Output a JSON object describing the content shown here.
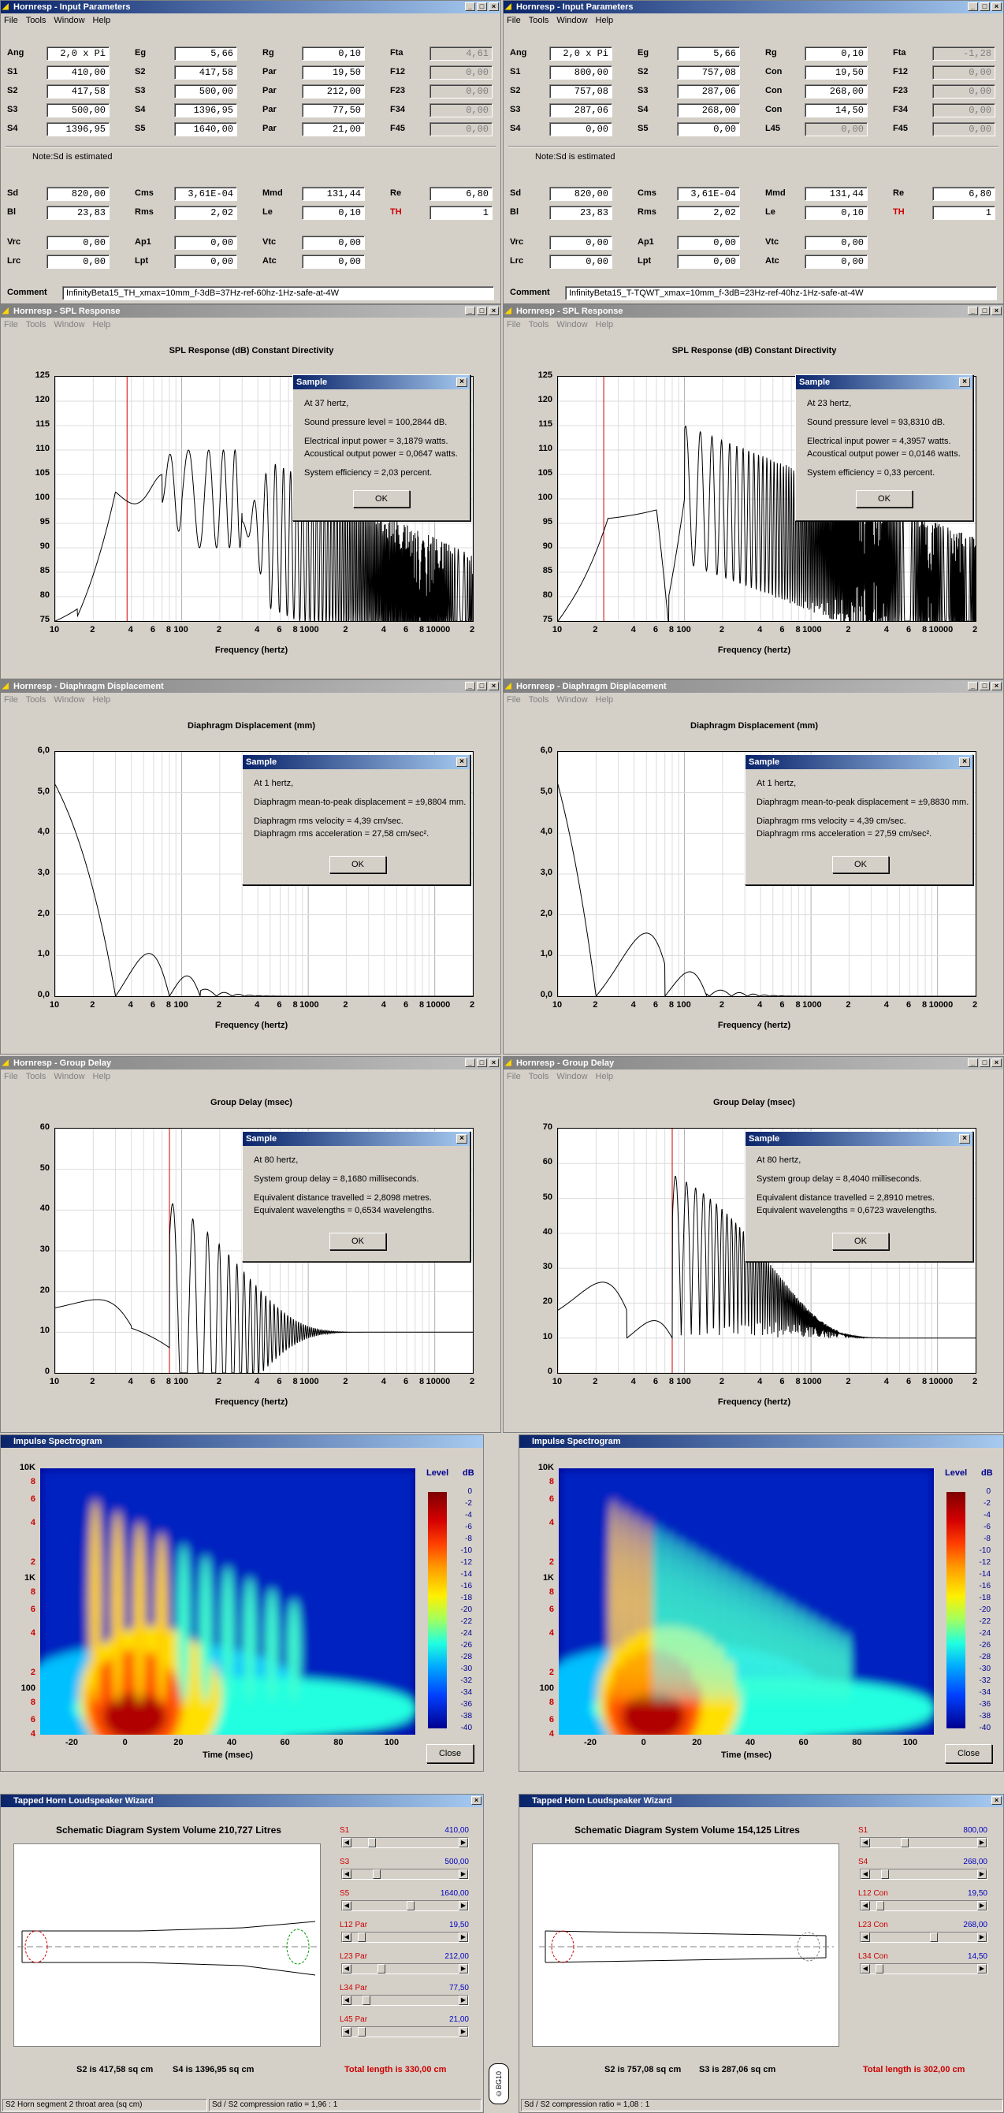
{
  "app_icon": "horn-icon",
  "menu": [
    "File",
    "Tools",
    "Window",
    "Help"
  ],
  "input_left": {
    "title": "Hornresp - Input Parameters",
    "rows": [
      [
        [
          "Ang",
          "2,0 x Pi",
          false
        ],
        [
          "Eg",
          "5,66",
          false
        ],
        [
          "Rg",
          "0,10",
          false
        ],
        [
          "Fta",
          "4,61",
          true
        ]
      ],
      [
        [
          "S1",
          "410,00",
          false
        ],
        [
          "S2",
          "417,58",
          false
        ],
        [
          "Par",
          "19,50",
          false
        ],
        [
          "F12",
          "0,00",
          true
        ]
      ],
      [
        [
          "S2",
          "417,58",
          false
        ],
        [
          "S3",
          "500,00",
          false
        ],
        [
          "Par",
          "212,00",
          false
        ],
        [
          "F23",
          "0,00",
          true
        ]
      ],
      [
        [
          "S3",
          "500,00",
          false
        ],
        [
          "S4",
          "1396,95",
          false
        ],
        [
          "Par",
          "77,50",
          false
        ],
        [
          "F34",
          "0,00",
          true
        ]
      ],
      [
        [
          "S4",
          "1396,95",
          false
        ],
        [
          "S5",
          "1640,00",
          false
        ],
        [
          "Par",
          "21,00",
          false
        ],
        [
          "F45",
          "0,00",
          true
        ]
      ]
    ],
    "note": "Note:Sd is estimated",
    "driver": [
      [
        [
          "Sd",
          "820,00",
          false
        ],
        [
          "Cms",
          "3,61E-04",
          false
        ],
        [
          "Mmd",
          "131,44",
          false
        ],
        [
          "Re",
          "6,80",
          false
        ]
      ],
      [
        [
          "Bl",
          "23,83",
          false
        ],
        [
          "Rms",
          "2,02",
          false
        ],
        [
          "Le",
          "0,10",
          false
        ],
        [
          "TH",
          "1",
          true
        ]
      ]
    ],
    "chamber": [
      [
        [
          "Vrc",
          "0,00"
        ],
        [
          "Ap1",
          "0,00"
        ],
        [
          "Vtc",
          "0,00"
        ]
      ],
      [
        [
          "Lrc",
          "0,00"
        ],
        [
          "Lpt",
          "0,00"
        ],
        [
          "Atc",
          "0,00"
        ]
      ]
    ],
    "comment_label": "Comment",
    "comment": "InfinityBeta15_TH_xmax=10mm_f-3dB=37Hz-ref-60hz-1Hz-safe-at-4W"
  },
  "input_right": {
    "title": "Hornresp - Input Parameters",
    "rows": [
      [
        [
          "Ang",
          "2,0 x Pi",
          false
        ],
        [
          "Eg",
          "5,66",
          false
        ],
        [
          "Rg",
          "0,10",
          false
        ],
        [
          "Fta",
          "-1,28",
          true
        ]
      ],
      [
        [
          "S1",
          "800,00",
          false
        ],
        [
          "S2",
          "757,08",
          false
        ],
        [
          "Con",
          "19,50",
          false
        ],
        [
          "F12",
          "0,00",
          true
        ]
      ],
      [
        [
          "S2",
          "757,08",
          false
        ],
        [
          "S3",
          "287,06",
          false
        ],
        [
          "Con",
          "268,00",
          false
        ],
        [
          "F23",
          "0,00",
          true
        ]
      ],
      [
        [
          "S3",
          "287,06",
          false
        ],
        [
          "S4",
          "268,00",
          false
        ],
        [
          "Con",
          "14,50",
          false
        ],
        [
          "F34",
          "0,00",
          true
        ]
      ],
      [
        [
          "S4",
          "0,00",
          false
        ],
        [
          "S5",
          "0,00",
          false
        ],
        [
          "L45",
          "0,00",
          true
        ],
        [
          "F45",
          "0,00",
          true
        ]
      ]
    ],
    "note": "Note:Sd is estimated",
    "driver": [
      [
        [
          "Sd",
          "820,00",
          false
        ],
        [
          "Cms",
          "3,61E-04",
          false
        ],
        [
          "Mmd",
          "131,44",
          false
        ],
        [
          "Re",
          "6,80",
          false
        ]
      ],
      [
        [
          "Bl",
          "23,83",
          false
        ],
        [
          "Rms",
          "2,02",
          false
        ],
        [
          "Le",
          "0,10",
          false
        ],
        [
          "TH",
          "1",
          true
        ]
      ]
    ],
    "chamber": [
      [
        [
          "Vrc",
          "0,00"
        ],
        [
          "Ap1",
          "0,00"
        ],
        [
          "Vtc",
          "0,00"
        ]
      ],
      [
        [
          "Lrc",
          "0,00"
        ],
        [
          "Lpt",
          "0,00"
        ],
        [
          "Atc",
          "0,00"
        ]
      ]
    ],
    "comment_label": "Comment",
    "comment": "InfinityBeta15_T-TQWT_xmax=10mm_f-3dB=23Hz-ref-40hz-1Hz-safe-at-4W"
  },
  "x_ticks": [
    "10",
    "2",
    "4",
    "6",
    "8",
    "100",
    "2",
    "4",
    "6",
    "8",
    "1000",
    "2",
    "4",
    "6",
    "8",
    "10000",
    "2"
  ],
  "x_axis_label": "Frequency (hertz)",
  "spl_left": {
    "title": "Hornresp - SPL Response",
    "plot_title": "SPL Response (dB)   Constant Directivity",
    "y_ticks": [
      "125",
      "120",
      "115",
      "110",
      "105",
      "100",
      "95",
      "90",
      "85",
      "80",
      "75"
    ],
    "marker_hz": 37,
    "dialog": {
      "title": "Sample",
      "lines": [
        "At 37 hertz,",
        "Sound pressure level = 100,2844 dB.",
        "Electrical input power = 3,1879 watts.",
        "Acoustical output power = 0,0647 watts.",
        "System efficiency = 2,03 percent."
      ],
      "ok": "OK"
    }
  },
  "spl_right": {
    "title": "Hornresp - SPL Response",
    "plot_title": "SPL Response (dB)   Constant Directivity",
    "y_ticks": [
      "125",
      "120",
      "115",
      "110",
      "105",
      "100",
      "95",
      "90",
      "85",
      "80",
      "75"
    ],
    "marker_hz": 23,
    "dialog": {
      "title": "Sample",
      "lines": [
        "At 23 hertz,",
        "Sound pressure level = 93,8310 dB.",
        "Electrical input power = 4,3957 watts.",
        "Acoustical output power = 0,0146 watts.",
        "System efficiency = 0,33 percent."
      ],
      "ok": "OK"
    }
  },
  "disp_left": {
    "title": "Hornresp - Diaphragm Displacement",
    "plot_title": "Diaphragm Displacement (mm)",
    "y_ticks": [
      "6,0",
      "5,0",
      "4,0",
      "3,0",
      "2,0",
      "1,0",
      "0,0"
    ],
    "dialog": {
      "title": "Sample",
      "lines": [
        "At 1 hertz,",
        "Diaphragm mean-to-peak displacement = ±9,8804 mm.",
        "Diaphragm rms velocity = 4,39 cm/sec.",
        "Diaphragm rms acceleration = 27,58 cm/sec²."
      ],
      "ok": "OK"
    }
  },
  "disp_right": {
    "title": "Hornresp - Diaphragm Displacement",
    "plot_title": "Diaphragm Displacement (mm)",
    "y_ticks": [
      "6,0",
      "5,0",
      "4,0",
      "3,0",
      "2,0",
      "1,0",
      "0,0"
    ],
    "dialog": {
      "title": "Sample",
      "lines": [
        "At 1 hertz,",
        "Diaphragm mean-to-peak displacement = ±9,8830 mm.",
        "Diaphragm rms velocity = 4,39 cm/sec.",
        "Diaphragm rms acceleration = 27,59 cm/sec²."
      ],
      "ok": "OK"
    }
  },
  "gd_left": {
    "title": "Hornresp - Group Delay",
    "plot_title": "Group Delay (msec)",
    "y_ticks": [
      "60",
      "50",
      "40",
      "30",
      "20",
      "10",
      "0"
    ],
    "marker_hz": 80,
    "dialog": {
      "title": "Sample",
      "lines": [
        "At 80 hertz,",
        "System group delay = 8,1680 milliseconds.",
        "Equivalent distance travelled = 2,8098 metres.",
        "Equivalent wavelengths = 0,6534 wavelengths."
      ],
      "ok": "OK"
    }
  },
  "gd_right": {
    "title": "Hornresp - Group Delay",
    "plot_title": "Group Delay (msec)",
    "y_ticks": [
      "70",
      "60",
      "50",
      "40",
      "30",
      "20",
      "10",
      "0"
    ],
    "marker_hz": 80,
    "dialog": {
      "title": "Sample",
      "lines": [
        "At 80 hertz,",
        "System group delay = 8,4040 milliseconds.",
        "Equivalent distance travelled = 2,8910 metres.",
        "Equivalent wavelengths = 0,6723 wavelengths."
      ],
      "ok": "OK"
    }
  },
  "spectrogram": {
    "title": "Impulse Spectrogram",
    "y_ticks": [
      "10K",
      "8",
      "6",
      "4",
      "2",
      "1K",
      "8",
      "6",
      "4",
      "2",
      "100",
      "8",
      "6",
      "4"
    ],
    "x_ticks": [
      "-20",
      "0",
      "20",
      "40",
      "60",
      "80",
      "100"
    ],
    "x_label": "Time (msec)",
    "level_label": "Level",
    "db_label": "dB",
    "db_ticks": [
      "0",
      "-2",
      "-4",
      "-6",
      "-8",
      "-10",
      "-12",
      "-14",
      "-16",
      "-18",
      "-20",
      "-22",
      "-24",
      "-26",
      "-28",
      "-30",
      "-32",
      "-34",
      "-36",
      "-38",
      "-40"
    ],
    "close": "Close"
  },
  "wizard_left": {
    "title": "Tapped Horn Loudspeaker Wizard",
    "heading": "Schematic Diagram   System Volume 210,727 Litres",
    "sliders": [
      [
        "S1",
        "410,00",
        0.15
      ],
      [
        "S3",
        "500,00",
        0.2
      ],
      [
        "S5",
        "1640,00",
        0.55
      ],
      [
        "L12  Par",
        "19,50",
        0.05
      ],
      [
        "L23  Par",
        "212,00",
        0.25
      ],
      [
        "L34  Par",
        "77,50",
        0.1
      ],
      [
        "L45  Par",
        "21,00",
        0.05
      ]
    ],
    "area_a": "S2 is 417,58 sq cm",
    "area_b": "S4 is 1396,95 sq cm",
    "total": "Total length is 330,00 cm",
    "status_a": "S2   Horn segment 2 throat area  (sq cm)",
    "status_b": "Sd / S2 compression ratio = 1,96 : 1"
  },
  "wizard_right": {
    "title": "Tapped Horn Loudspeaker Wizard",
    "heading": "Schematic Diagram   System Volume 154,125 Litres",
    "sliders": [
      [
        "S1",
        "800,00",
        0.3
      ],
      [
        "S4",
        "268,00",
        0.1
      ],
      [
        "L12  Con",
        "19,50",
        0.05
      ],
      [
        "L23  Con",
        "268,00",
        0.6
      ],
      [
        "L34  Con",
        "14,50",
        0.04
      ]
    ],
    "area_a": "S2 is 757,08 sq cm",
    "area_b": "S3 is 287,06 sq cm",
    "total": "Total length is 302,00 cm",
    "status_a": "",
    "status_b": "Sd / S2 compression ratio = 1,08 : 1"
  },
  "watermark": "©BG10"
}
